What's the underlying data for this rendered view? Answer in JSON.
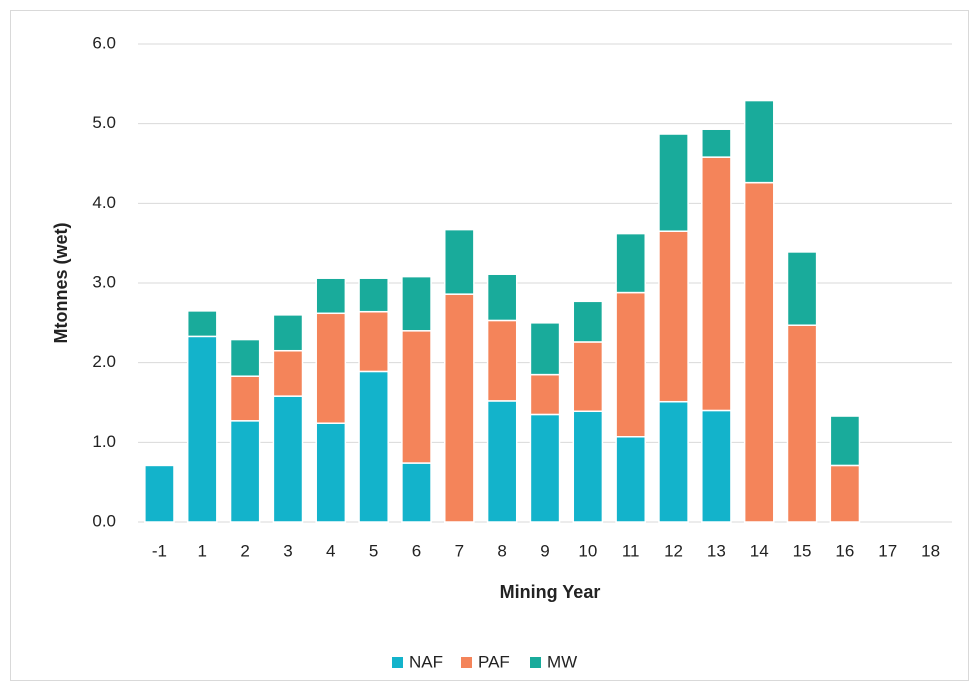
{
  "chart_data": {
    "type": "stacked_bar",
    "x_label": "Mining Year",
    "y_label": "Mtonnes (wet)",
    "categories": [
      "-1",
      "1",
      "2",
      "3",
      "4",
      "5",
      "6",
      "7",
      "8",
      "9",
      "10",
      "11",
      "12",
      "13",
      "14",
      "15",
      "16",
      "17",
      "18"
    ],
    "series": [
      {
        "name": "NAF",
        "color": "#13b3cb",
        "values": [
          0.71,
          2.33,
          1.27,
          1.58,
          1.24,
          1.89,
          0.74,
          0,
          1.52,
          1.35,
          1.39,
          1.07,
          1.51,
          1.4,
          0,
          0,
          0,
          0,
          0
        ]
      },
      {
        "name": "PAF",
        "color": "#f4845a",
        "values": [
          0,
          0,
          0.56,
          0.57,
          1.38,
          0.75,
          1.66,
          2.86,
          1.01,
          0.5,
          0.87,
          1.81,
          2.14,
          3.18,
          4.26,
          2.47,
          0.71,
          0,
          0
        ]
      },
      {
        "name": "MW",
        "color": "#19ab9b",
        "values": [
          0,
          0.32,
          0.46,
          0.45,
          0.44,
          0.42,
          0.68,
          0.81,
          0.58,
          0.65,
          0.51,
          0.74,
          1.22,
          0.35,
          1.03,
          0.92,
          0.62,
          0,
          0
        ]
      }
    ],
    "ylim": [
      0,
      6
    ],
    "yticks": [
      {
        "value": 0,
        "label": "0.0"
      },
      {
        "value": 1,
        "label": "1.0"
      },
      {
        "value": 2,
        "label": "2.0"
      },
      {
        "value": 3,
        "label": "3.0"
      },
      {
        "value": 4,
        "label": "4.0"
      },
      {
        "value": 5,
        "label": "5.0"
      },
      {
        "value": 6,
        "label": "6.0"
      }
    ],
    "grid": true,
    "legend": "bottom"
  }
}
